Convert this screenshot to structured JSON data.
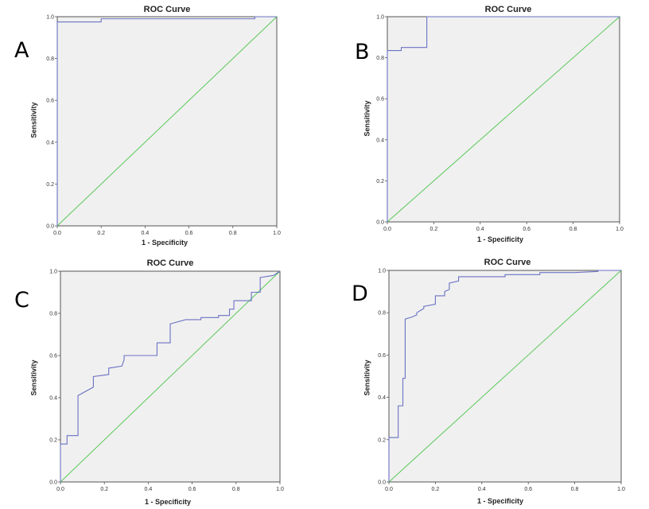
{
  "colors": {
    "curve": "#6b72c4",
    "reference": "#59c959",
    "plot_bg": "#f0f0f0",
    "frame": "#555555"
  },
  "chart_data": [
    {
      "type": "line",
      "panel": "A",
      "title": "ROC Curve",
      "xlabel": "1 - Specificity",
      "ylabel": "Sensitivity",
      "xlim": [
        0,
        1
      ],
      "ylim": [
        0,
        1
      ],
      "xticks": [
        "0.0",
        "0.2",
        "0.4",
        "0.6",
        "0.8",
        "1.0"
      ],
      "yticks": [
        "0.0",
        "0.2",
        "0.4",
        "0.6",
        "0.8",
        "1.0"
      ],
      "grid": false,
      "series": [
        {
          "x": [
            0,
            0,
            0.2,
            0.2,
            0.9,
            0.9,
            1.0
          ],
          "y": [
            0,
            0.975,
            0.975,
            0.99,
            0.99,
            1.0,
            1.0
          ]
        },
        {
          "x": [
            0,
            1
          ],
          "y": [
            0,
            1
          ]
        }
      ]
    },
    {
      "type": "line",
      "panel": "B",
      "title": "ROC Curve",
      "xlabel": "1 - Specificity",
      "ylabel": "Sensitivity",
      "xlim": [
        0,
        1
      ],
      "ylim": [
        0,
        1
      ],
      "xticks": [
        "0.0",
        "0.2",
        "0.4",
        "0.6",
        "0.8",
        "1.0"
      ],
      "yticks": [
        "0.0",
        "0.2",
        "0.4",
        "0.6",
        "0.8",
        "1.0"
      ],
      "grid": false,
      "series": [
        {
          "x": [
            0,
            0,
            0.06,
            0.06,
            0.17,
            0.17,
            1.0
          ],
          "y": [
            0,
            0.835,
            0.835,
            0.85,
            0.85,
            1.0,
            1.0
          ]
        },
        {
          "x": [
            0,
            1
          ],
          "y": [
            0,
            1
          ]
        }
      ]
    },
    {
      "type": "line",
      "panel": "C",
      "title": "ROC Curve",
      "xlabel": "1 - Specificity",
      "ylabel": "Sensitivity",
      "xlim": [
        0,
        1
      ],
      "ylim": [
        0,
        1
      ],
      "xticks": [
        "0.0",
        "0.2",
        "0.4",
        "0.6",
        "0.8",
        "1.0"
      ],
      "yticks": [
        "0.0",
        "0.2",
        "0.4",
        "0.6",
        "0.8",
        "1.0"
      ],
      "grid": false,
      "series": [
        {
          "x": [
            0,
            0,
            0.03,
            0.03,
            0.08,
            0.08,
            0.15,
            0.15,
            0.22,
            0.22,
            0.28,
            0.29,
            0.29,
            0.44,
            0.44,
            0.5,
            0.5,
            0.57,
            0.57,
            0.64,
            0.64,
            0.72,
            0.72,
            0.77,
            0.77,
            0.79,
            0.79,
            0.87,
            0.87,
            0.91,
            0.91,
            0.97,
            1.0
          ],
          "y": [
            0,
            0.18,
            0.18,
            0.22,
            0.22,
            0.41,
            0.45,
            0.5,
            0.51,
            0.54,
            0.55,
            0.58,
            0.6,
            0.6,
            0.66,
            0.66,
            0.75,
            0.77,
            0.77,
            0.77,
            0.78,
            0.78,
            0.79,
            0.79,
            0.82,
            0.82,
            0.86,
            0.86,
            0.9,
            0.9,
            0.97,
            0.98,
            1.0
          ]
        },
        {
          "x": [
            0,
            1
          ],
          "y": [
            0,
            1
          ]
        }
      ]
    },
    {
      "type": "line",
      "panel": "D",
      "title": "ROC Curve",
      "xlabel": "1 - Specificity",
      "ylabel": "Sensitivity",
      "xlim": [
        0,
        1
      ],
      "ylim": [
        0,
        1
      ],
      "xticks": [
        "0.0",
        "0.2",
        "0.4",
        "0.6",
        "0.8",
        "1.0"
      ],
      "yticks": [
        "0.0",
        "0.2",
        "0.4",
        "0.6",
        "0.8",
        "1.0"
      ],
      "grid": false,
      "series": [
        {
          "x": [
            0,
            0,
            0.04,
            0.04,
            0.06,
            0.06,
            0.07,
            0.07,
            0.1,
            0.12,
            0.12,
            0.15,
            0.15,
            0.2,
            0.2,
            0.24,
            0.24,
            0.26,
            0.26,
            0.3,
            0.3,
            0.5,
            0.5,
            0.65,
            0.65,
            0.8,
            0.8,
            0.9,
            0.9,
            1.0
          ],
          "y": [
            0,
            0.21,
            0.21,
            0.36,
            0.36,
            0.49,
            0.49,
            0.77,
            0.78,
            0.79,
            0.8,
            0.82,
            0.83,
            0.84,
            0.88,
            0.88,
            0.9,
            0.91,
            0.94,
            0.95,
            0.97,
            0.97,
            0.98,
            0.98,
            0.99,
            0.99,
            0.99,
            0.995,
            1.0,
            1.0
          ]
        },
        {
          "x": [
            0,
            1
          ],
          "y": [
            0,
            1
          ]
        }
      ]
    }
  ]
}
